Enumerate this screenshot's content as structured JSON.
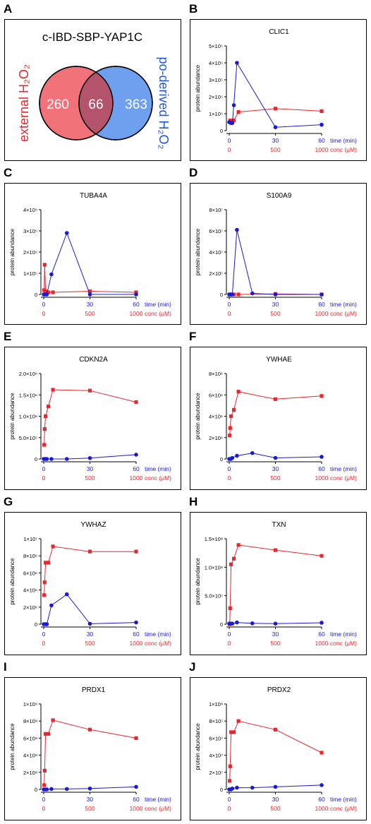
{
  "panels": {
    "A": {
      "letter": "A"
    },
    "B": {
      "letter": "B"
    },
    "C": {
      "letter": "C"
    },
    "D": {
      "letter": "D"
    },
    "E": {
      "letter": "E"
    },
    "F": {
      "letter": "F"
    },
    "G": {
      "letter": "G"
    },
    "H": {
      "letter": "H"
    },
    "I": {
      "letter": "I"
    },
    "J": {
      "letter": "J"
    }
  },
  "venn": {
    "title": "c-IBD-SBP-YAP1C",
    "left_label": "external H₂O₂",
    "right_label": "po-derived H₂O₂",
    "left_only": "260",
    "overlap": "66",
    "right_only": "363",
    "left_color": "#f2727a",
    "right_color": "#6fa0ef",
    "overlap_color": "#b4546c",
    "left_text_color": "#e8272e",
    "right_text_color": "#2255dd"
  },
  "axis_text": {
    "ylabel": "protein abundance",
    "time_label": "time (min)",
    "conc_label": "conc (μM)",
    "time_ticks": [
      "0",
      "30",
      "60"
    ],
    "conc_ticks": [
      "0",
      "500",
      "1000"
    ]
  },
  "colors": {
    "conc_series": "#e8272e",
    "time_series": "#1a1ad6"
  },
  "chart_data": [
    {
      "panel": "B",
      "type": "line",
      "title": "CLIC1",
      "ylim": [
        0,
        500000
      ],
      "yticks": [
        "0",
        "1×10⁵",
        "2×10⁵",
        "3×10⁵",
        "4×10⁵",
        "5×10⁵"
      ],
      "series": [
        {
          "x_axis": "conc",
          "x": [
            10,
            20,
            50,
            100,
            500,
            1000
          ],
          "values": [
            60000,
            60000,
            60000,
            110000,
            130000,
            115000
          ]
        },
        {
          "x_axis": "time",
          "x": [
            0,
            1,
            2,
            3,
            5,
            30,
            60
          ],
          "values": [
            50000,
            45000,
            45000,
            150000,
            400000,
            20000,
            35000
          ]
        }
      ]
    },
    {
      "panel": "C",
      "type": "line",
      "title": "TUBA4A",
      "ylim": [
        0,
        400000
      ],
      "yticks": [
        "0",
        "1×10⁵",
        "2×10⁵",
        "3×10⁵",
        "4×10⁵"
      ],
      "series": [
        {
          "x_axis": "conc",
          "x": [
            5,
            10,
            20,
            50,
            100,
            500,
            1000
          ],
          "values": [
            20000,
            140000,
            15000,
            10000,
            10000,
            15000,
            10000
          ]
        },
        {
          "x_axis": "time",
          "x": [
            0,
            1,
            2,
            5,
            15,
            30,
            60
          ],
          "values": [
            0,
            0,
            0,
            95000,
            290000,
            0,
            0
          ]
        }
      ]
    },
    {
      "panel": "D",
      "type": "line",
      "title": "S100A9",
      "ylim": [
        0,
        80000000
      ],
      "yticks": [
        "0",
        "2×10⁷",
        "4×10⁷",
        "6×10⁷",
        "8×10⁷"
      ],
      "series": [
        {
          "x_axis": "conc",
          "x": [
            5,
            10,
            20,
            50,
            100,
            500,
            1000
          ],
          "values": [
            0,
            0,
            0,
            0,
            0,
            500000,
            0
          ]
        },
        {
          "x_axis": "time",
          "x": [
            0,
            1,
            2,
            5,
            15,
            30,
            60
          ],
          "values": [
            0,
            0,
            0,
            61000000,
            1000000,
            0,
            0
          ]
        }
      ]
    },
    {
      "panel": "E",
      "type": "line",
      "title": "CDKN2A",
      "ylim": [
        0,
        2000000
      ],
      "yticks": [
        "0",
        "5.0×10⁵",
        "1.0×10⁶",
        "1.5×10⁶",
        "2.0×10⁶"
      ],
      "series": [
        {
          "x_axis": "conc",
          "x": [
            5,
            10,
            20,
            50,
            100,
            500,
            1000
          ],
          "values": [
            330000,
            700000,
            1000000,
            1230000,
            1620000,
            1600000,
            1330000
          ]
        },
        {
          "x_axis": "time",
          "x": [
            0,
            1,
            2,
            5,
            15,
            30,
            60
          ],
          "values": [
            0,
            0,
            0,
            0,
            0,
            20000,
            100000
          ]
        }
      ]
    },
    {
      "panel": "F",
      "type": "line",
      "title": "YWHAE",
      "ylim": [
        0,
        8000000
      ],
      "yticks": [
        "0",
        "2×10⁶",
        "4×10⁶",
        "6×10⁶",
        "8×10⁶"
      ],
      "series": [
        {
          "x_axis": "conc",
          "x": [
            5,
            10,
            20,
            50,
            100,
            500,
            1000
          ],
          "values": [
            2200000,
            2900000,
            4000000,
            4600000,
            6300000,
            5600000,
            5900000
          ]
        },
        {
          "x_axis": "time",
          "x": [
            0,
            1,
            2,
            5,
            15,
            30,
            60
          ],
          "values": [
            0,
            0,
            100000,
            300000,
            550000,
            100000,
            200000
          ]
        }
      ]
    },
    {
      "panel": "G",
      "type": "line",
      "title": "YWHAZ",
      "ylim": [
        0,
        10000000
      ],
      "yticks": [
        "0",
        "2×10⁶",
        "4×10⁶",
        "6×10⁶",
        "8×10⁶",
        "1×10⁷"
      ],
      "series": [
        {
          "x_axis": "conc",
          "x": [
            5,
            10,
            20,
            50,
            100,
            500,
            1000
          ],
          "values": [
            3400000,
            4900000,
            7200000,
            7200000,
            9100000,
            8500000,
            8500000
          ]
        },
        {
          "x_axis": "time",
          "x": [
            0,
            1,
            2,
            5,
            15,
            30,
            60
          ],
          "values": [
            0,
            0,
            0,
            2200000,
            3500000,
            50000,
            200000
          ]
        }
      ]
    },
    {
      "panel": "H",
      "type": "line",
      "title": "TXN",
      "ylim": [
        0,
        150000000
      ],
      "yticks": [
        "0",
        "5.0×10⁷",
        "1.0×10⁸",
        "1.5×10⁸"
      ],
      "series": [
        {
          "x_axis": "conc",
          "x": [
            5,
            10,
            20,
            50,
            100,
            500,
            1000
          ],
          "values": [
            0,
            28000000,
            105000000,
            115000000,
            139000000,
            130000000,
            120000000
          ]
        },
        {
          "x_axis": "time",
          "x": [
            0,
            1,
            2,
            5,
            15,
            30,
            60
          ],
          "values": [
            1000000,
            1000000,
            1000000,
            3000000,
            1500000,
            1000000,
            2500000
          ]
        }
      ]
    },
    {
      "panel": "I",
      "type": "line",
      "title": "PRDX1",
      "ylim": [
        0,
        1000000000
      ],
      "yticks": [
        "0",
        "2×10⁸",
        "4×10⁸",
        "6×10⁸",
        "8×10⁸",
        "1×10⁹"
      ],
      "series": [
        {
          "x_axis": "conc",
          "x": [
            5,
            10,
            20,
            50,
            100,
            500,
            1000
          ],
          "values": [
            50000000,
            220000000,
            650000000,
            650000000,
            810000000,
            700000000,
            600000000
          ]
        },
        {
          "x_axis": "time",
          "x": [
            0,
            1,
            2,
            5,
            15,
            30,
            60
          ],
          "values": [
            0,
            0,
            0,
            5000000,
            5000000,
            10000000,
            30000000
          ]
        }
      ]
    },
    {
      "panel": "J",
      "type": "line",
      "title": "PRDX2",
      "ylim": [
        0,
        100000000
      ],
      "yticks": [
        "0",
        "2×10⁷",
        "4×10⁷",
        "6×10⁷",
        "8×10⁷",
        "1×10⁸"
      ],
      "series": [
        {
          "x_axis": "conc",
          "x": [
            5,
            10,
            20,
            50,
            100,
            500,
            1000
          ],
          "values": [
            10000000,
            27000000,
            67000000,
            67000000,
            80000000,
            70000000,
            43000000
          ]
        },
        {
          "x_axis": "time",
          "x": [
            0,
            1,
            2,
            5,
            15,
            30,
            60
          ],
          "values": [
            0,
            0,
            1000000,
            2000000,
            2000000,
            3000000,
            5000000
          ]
        }
      ]
    }
  ]
}
